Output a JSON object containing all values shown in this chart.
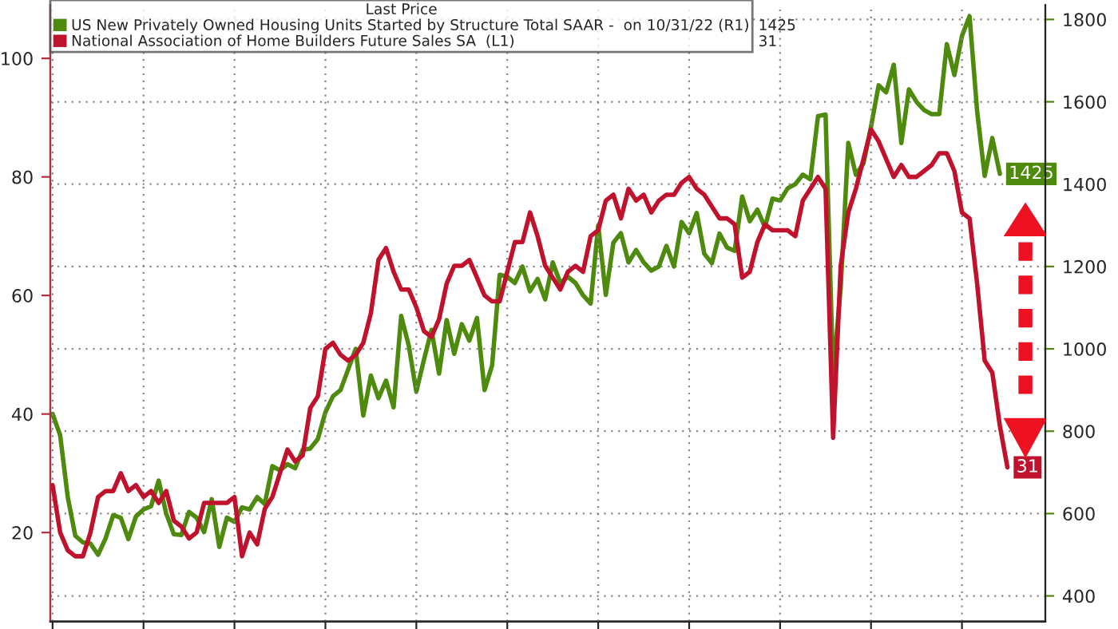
{
  "chart_data": {
    "type": "line",
    "legend_title": "Last Price",
    "categories": [
      null,
      null,
      null,
      null,
      null,
      null,
      null,
      null,
      null,
      null,
      null,
      null,
      null,
      null,
      null,
      null,
      null,
      null,
      null,
      null,
      null,
      null,
      null,
      null,
      null,
      null,
      null,
      null,
      null,
      null,
      null,
      null,
      null,
      null,
      null,
      null,
      null,
      null,
      null,
      null,
      null,
      null,
      null,
      null,
      null,
      null,
      null,
      null,
      null,
      null,
      null,
      null,
      null,
      null,
      null,
      null,
      null,
      null,
      null,
      null,
      null,
      null,
      null,
      null,
      null,
      null,
      null,
      null,
      null,
      null,
      null,
      null,
      null,
      null,
      null,
      null,
      null,
      null,
      null,
      null,
      null,
      null,
      null,
      null,
      null,
      null,
      null,
      null,
      null,
      null,
      null,
      null,
      null,
      null,
      null,
      null,
      null,
      null,
      null,
      null,
      null,
      null,
      null,
      null,
      null,
      null,
      null,
      null,
      null,
      null,
      null,
      null,
      null,
      null,
      null,
      null,
      null,
      null,
      null,
      null,
      null,
      null,
      null,
      null,
      null,
      null,
      null
    ],
    "series": [
      {
        "name": "US New Privately Owned Housing Units Started by Structure Total SAAR -  on 10/31/22 (R1)",
        "color": "#4e8a0e",
        "axis": "y2",
        "values": [
          842,
          790,
          640,
          546,
          530,
          527,
          500,
          540,
          596,
          590,
          538,
          593,
          610,
          618,
          680,
          600,
          550,
          548,
          604,
          590,
          555,
          635,
          519,
          590,
          580,
          615,
          610,
          640,
          623,
          715,
          705,
          720,
          710,
          755,
          758,
          781,
          846,
          885,
          900,
          950,
          1000,
          838,
          935,
          880,
          923,
          858,
          1080,
          1008,
          896,
          973,
          1046,
          940,
          1070,
          988,
          1060,
          1020,
          1075,
          900,
          960,
          1180,
          1175,
          1160,
          1200,
          1140,
          1170,
          1120,
          1210,
          1160,
          1175,
          1160,
          1130,
          1110,
          1300,
          1131,
          1258,
          1281,
          1210,
          1240,
          1210,
          1190,
          1200,
          1250,
          1200,
          1308,
          1281,
          1330,
          1231,
          1208,
          1280,
          1246,
          1238,
          1370,
          1310,
          1338,
          1296,
          1365,
          1360,
          1390,
          1400,
          1423,
          1412,
          1565,
          1569,
          935,
          1150,
          1500,
          1423,
          1450,
          1540,
          1640,
          1623,
          1690,
          1500,
          1630,
          1600,
          1580,
          1570,
          1570,
          1740,
          1665,
          1760,
          1808,
          1577,
          1420,
          1512,
          1425,
          null
        ],
        "value_labels": [
          null,
          null,
          null,
          null,
          null,
          null,
          null,
          null,
          null,
          null,
          null,
          null,
          null,
          null,
          null,
          null,
          null,
          null,
          null,
          null,
          null,
          null,
          null,
          null,
          null,
          null,
          null,
          null,
          null,
          null,
          null,
          null,
          null,
          null,
          null,
          null,
          null,
          null,
          null,
          null,
          null,
          null,
          null,
          null,
          null,
          null,
          null,
          null,
          null,
          null,
          null,
          null,
          null,
          null,
          null,
          null,
          null,
          null,
          null,
          null,
          null,
          null,
          null,
          null,
          null,
          null,
          null,
          null,
          null,
          null,
          null,
          null,
          null,
          null,
          null,
          null,
          null,
          null,
          null,
          null,
          null,
          null,
          null,
          null,
          null,
          null,
          null,
          null,
          null,
          null,
          null,
          null,
          null,
          null,
          null,
          null,
          null,
          null,
          null,
          null,
          null,
          null,
          null,
          null,
          null,
          null,
          null,
          null,
          null,
          null,
          null,
          null,
          null,
          null,
          null,
          null,
          null,
          null,
          null,
          null,
          null,
          null,
          null,
          null,
          null,
          "1425",
          null
        ]
      },
      {
        "name": "National Association of Home Builders Future Sales SA  (L1)",
        "color": "#c0122c",
        "axis": "y",
        "values": [
          28,
          20,
          17,
          16,
          16,
          20,
          26,
          27,
          27,
          30,
          27,
          28,
          26,
          27,
          25,
          27,
          22,
          21,
          19,
          20,
          25,
          25,
          25,
          25,
          26,
          16,
          20,
          18,
          24,
          26,
          30,
          34,
          32,
          33,
          41,
          43,
          51,
          52,
          50,
          49,
          50,
          52,
          57,
          66,
          68,
          64,
          61,
          61,
          58,
          54,
          53,
          56,
          62,
          65,
          65,
          66,
          63,
          60,
          59,
          59,
          64,
          69,
          69,
          74,
          70,
          65,
          63,
          61,
          64,
          65,
          64,
          70,
          71,
          76,
          77,
          73,
          78,
          76,
          77,
          74,
          76,
          77,
          77,
          79,
          80,
          78,
          77,
          75,
          73,
          73,
          72,
          63,
          64,
          69,
          72,
          71,
          71,
          71,
          70,
          76,
          78,
          80,
          78,
          36,
          65,
          74,
          78,
          83,
          88,
          86,
          83,
          80,
          82,
          80,
          80,
          81,
          82,
          84,
          84,
          81,
          74,
          73,
          62,
          49,
          47,
          38,
          31
        ],
        "value_labels": [
          null,
          null,
          null,
          null,
          null,
          null,
          null,
          null,
          null,
          null,
          null,
          null,
          null,
          null,
          null,
          null,
          null,
          null,
          null,
          null,
          null,
          null,
          null,
          null,
          null,
          null,
          null,
          null,
          null,
          null,
          null,
          null,
          null,
          null,
          null,
          null,
          null,
          null,
          null,
          null,
          null,
          null,
          null,
          null,
          null,
          null,
          null,
          null,
          null,
          null,
          null,
          null,
          null,
          null,
          null,
          null,
          null,
          null,
          null,
          null,
          null,
          null,
          null,
          null,
          null,
          null,
          null,
          null,
          null,
          null,
          null,
          null,
          null,
          null,
          null,
          null,
          null,
          null,
          null,
          null,
          null,
          null,
          null,
          null,
          null,
          null,
          null,
          null,
          null,
          null,
          null,
          null,
          null,
          null,
          null,
          null,
          null,
          null,
          null,
          null,
          null,
          null,
          null,
          null,
          null,
          null,
          null,
          null,
          null,
          null,
          null,
          null,
          null,
          null,
          null,
          null,
          null,
          null,
          null,
          null,
          null,
          null,
          null,
          null,
          null,
          null,
          "31"
        ]
      }
    ],
    "ylim": [
      5,
      109
    ],
    "yticks": [
      20,
      40,
      60,
      80,
      100
    ],
    "y2lim": [
      338,
      1835
    ],
    "y2ticks": [
      400,
      600,
      800,
      1000,
      1200,
      1400,
      1600,
      1800
    ],
    "grid": true,
    "legend": "top left",
    "tick_labels": "y",
    "marker": "none",
    "line_style": "solid"
  }
}
